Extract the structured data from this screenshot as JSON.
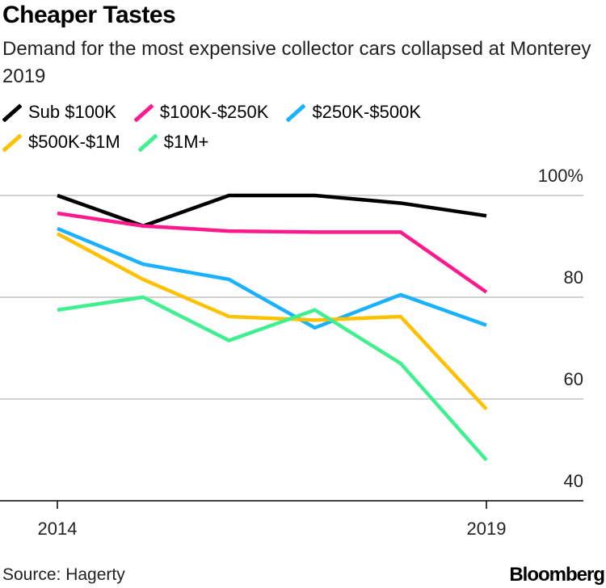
{
  "title": "Cheaper Tastes",
  "subtitle": "Demand for the most expensive collector cars collapsed at Monterey 2019",
  "source": "Source: Hagerty",
  "brand": "Bloomberg",
  "legend": [
    {
      "label": "Sub $100K",
      "color": "#000000"
    },
    {
      "label": "$100K-$250K",
      "color": "#ff1a8c"
    },
    {
      "label": "$250K-$500K",
      "color": "#1ab2ff"
    },
    {
      "label": "$500K-$1M",
      "color": "#ffc000"
    },
    {
      "label": "$1M+",
      "color": "#40f090"
    }
  ],
  "chart_data": {
    "type": "line",
    "x": [
      2014,
      2015,
      2016,
      2017,
      2018,
      2019
    ],
    "series": [
      {
        "name": "Sub $100K",
        "color": "#000000",
        "values": [
          100,
          94,
          100,
          100,
          98.5,
          96
        ]
      },
      {
        "name": "$100K-$250K",
        "color": "#ff1a8c",
        "values": [
          96.5,
          94,
          93,
          92.8,
          92.8,
          81
        ]
      },
      {
        "name": "$250K-$500K",
        "color": "#1ab2ff",
        "values": [
          93.5,
          86.5,
          83.5,
          74,
          80.5,
          74.5
        ]
      },
      {
        "name": "$500K-$1M",
        "color": "#ffc000",
        "values": [
          92.5,
          83.5,
          76.2,
          75.5,
          76.2,
          58
        ]
      },
      {
        "name": "$1M+",
        "color": "#40f090",
        "values": [
          77.5,
          80,
          71.5,
          77.5,
          67,
          48
        ]
      }
    ],
    "x_ticks": [
      "2014",
      "2019"
    ],
    "y_ticks": [
      "100%",
      "80",
      "60",
      "40"
    ],
    "y_tick_values": [
      100,
      80,
      60,
      40
    ],
    "ylim": [
      40,
      100
    ],
    "xlim": [
      2014,
      2019
    ],
    "grid": true,
    "y_axis_side": "right",
    "legend_position": "top"
  }
}
